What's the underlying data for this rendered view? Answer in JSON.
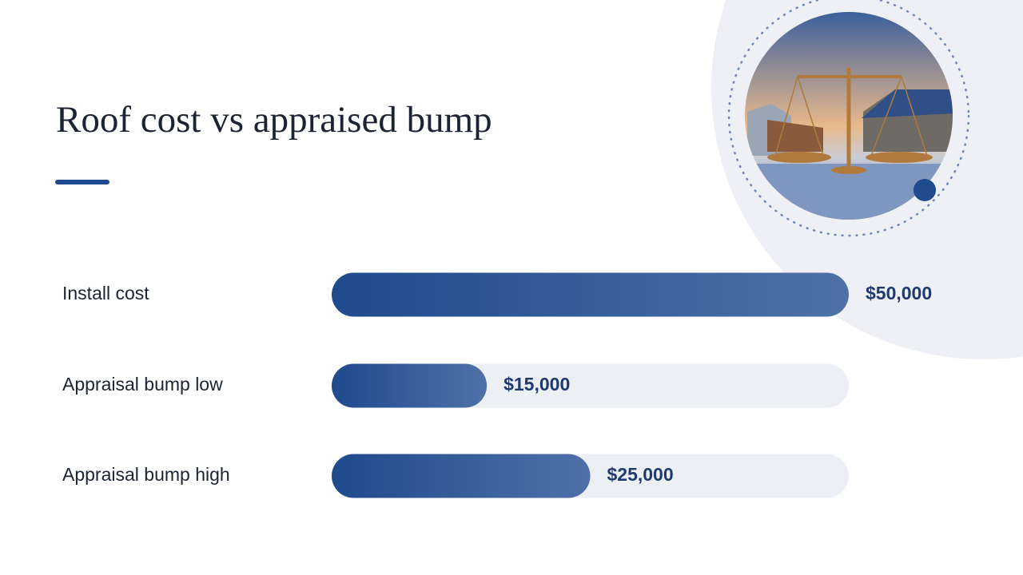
{
  "chart_data": {
    "type": "bar",
    "orientation": "horizontal",
    "title": "Roof cost vs appraised bump",
    "categories": [
      "Install cost",
      "Appraisal bump low",
      "Appraisal bump high"
    ],
    "values": [
      50000,
      15000,
      25000
    ],
    "value_labels": [
      "$50,000",
      "$15,000",
      "$25,000"
    ],
    "color": "#2a5294",
    "xlim": [
      0,
      50000
    ]
  }
}
